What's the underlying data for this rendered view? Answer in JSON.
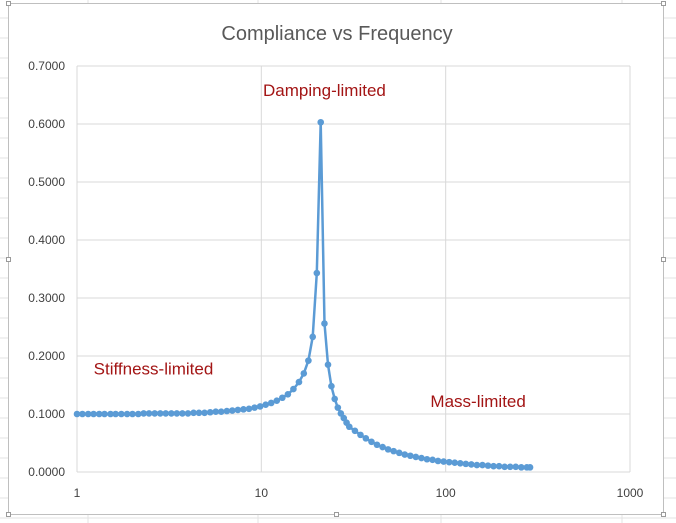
{
  "chart_data": {
    "type": "scatter",
    "title": "Compliance vs Frequency",
    "xscale": "log",
    "xlim": [
      1,
      1000
    ],
    "ylim": [
      0,
      0.7
    ],
    "xticks": [
      1,
      10,
      100,
      1000
    ],
    "xtick_labels": [
      "1",
      "10",
      "100",
      "1000"
    ],
    "yticks": [
      0,
      0.1,
      0.2,
      0.3,
      0.4,
      0.5,
      0.6,
      0.7
    ],
    "ytick_labels": [
      "0.0000",
      "0.1000",
      "0.2000",
      "0.3000",
      "0.4000",
      "0.5000",
      "0.6000",
      "0.7000"
    ],
    "grid": true,
    "legend": false,
    "series_color": "#5b9bd5",
    "series": [
      {
        "x": [
          1.0,
          1.07,
          1.15,
          1.23,
          1.32,
          1.41,
          1.52,
          1.62,
          1.74,
          1.87,
          2.0,
          2.15,
          2.3,
          2.46,
          2.64,
          2.83,
          3.03,
          3.25,
          3.48,
          3.73,
          4.0,
          4.29,
          4.59,
          4.92,
          5.28,
          5.66,
          6.06,
          6.5,
          6.96,
          7.46,
          8.0,
          8.57,
          9.19,
          9.85,
          10.56,
          11.31,
          12.13,
          13.0,
          13.93,
          14.93,
          16.0,
          17.0,
          18.0,
          19.0,
          20.0,
          21.0,
          22.0,
          23.0,
          24.0,
          25.0,
          26.0,
          27.0,
          28.0,
          29.0,
          30.0,
          32.2,
          34.5,
          36.9,
          39.6,
          42.4,
          45.5,
          48.7,
          52.2,
          56.0,
          60.0,
          64.3,
          68.9,
          73.9,
          79.2,
          84.9,
          90.9,
          97.5,
          104.5,
          112.0,
          120.0,
          128.6,
          137.8,
          147.7,
          158.3,
          169.7,
          181.9,
          194.9,
          208.9,
          223.9,
          240.0,
          257.2,
          275.7,
          287.0
        ],
        "y": [
          0.1,
          0.1,
          0.1,
          0.1,
          0.1,
          0.1,
          0.1,
          0.1,
          0.1,
          0.1,
          0.1,
          0.1,
          0.101,
          0.101,
          0.101,
          0.101,
          0.101,
          0.101,
          0.101,
          0.101,
          0.101,
          0.102,
          0.102,
          0.102,
          0.103,
          0.104,
          0.104,
          0.105,
          0.106,
          0.107,
          0.108,
          0.109,
          0.111,
          0.113,
          0.116,
          0.119,
          0.123,
          0.128,
          0.134,
          0.143,
          0.155,
          0.17,
          0.192,
          0.233,
          0.343,
          0.603,
          0.256,
          0.185,
          0.148,
          0.126,
          0.111,
          0.101,
          0.093,
          0.085,
          0.078,
          0.071,
          0.064,
          0.058,
          0.052,
          0.047,
          0.043,
          0.039,
          0.036,
          0.033,
          0.03,
          0.028,
          0.026,
          0.024,
          0.022,
          0.021,
          0.019,
          0.018,
          0.017,
          0.016,
          0.015,
          0.014,
          0.013,
          0.012,
          0.012,
          0.011,
          0.01,
          0.01,
          0.009,
          0.009,
          0.009,
          0.008,
          0.008,
          0.008
        ]
      }
    ],
    "annotations": [
      {
        "text": "Damping-limited",
        "x": 22,
        "y": 0.648
      },
      {
        "text": "Stiffness-limited",
        "x": 2.6,
        "y": 0.168
      },
      {
        "text": "Mass-limited",
        "x": 150,
        "y": 0.112
      }
    ]
  }
}
